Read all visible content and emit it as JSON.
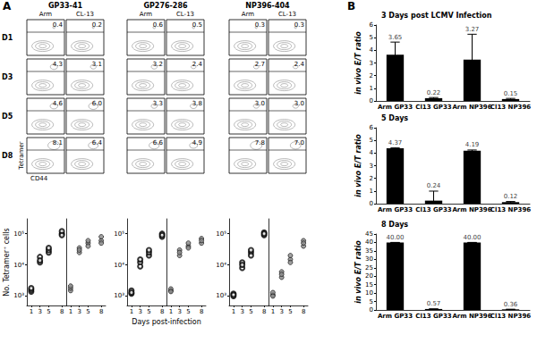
{
  "chart_data": [
    {
      "type": "contour",
      "annotations": [
        "A"
      ],
      "title": "GP33-41",
      "categories": [
        "D1",
        "D3",
        "D5",
        "D8"
      ],
      "xlabel": "CD44",
      "ylabel": "Tetramer",
      "data_labels": true,
      "series": [
        {
          "name": "Arm",
          "values": [
            0.4,
            4.3,
            4.6,
            8.1
          ],
          "value_labels": [
            "0.4",
            "4.3",
            "4.6",
            "8.1"
          ]
        },
        {
          "name": "CL-13",
          "values": [
            0.2,
            3.1,
            6.0,
            6.4
          ],
          "value_labels": [
            "0.2",
            "3.1",
            "6.0",
            "6.4"
          ]
        }
      ]
    },
    {
      "type": "contour",
      "title": "GP276-286",
      "categories": [
        "D1",
        "D3",
        "D5",
        "D8"
      ],
      "data_labels": true,
      "series": [
        {
          "name": "Arm",
          "values": [
            0.6,
            3.2,
            3.3,
            6.6
          ],
          "value_labels": [
            "0.6",
            "3.2",
            "3.3",
            "6.6"
          ]
        },
        {
          "name": "CL-13",
          "values": [
            0.5,
            2.4,
            3.8,
            4.9
          ],
          "value_labels": [
            "0.5",
            "2.4",
            "3.8",
            "4.9"
          ]
        }
      ]
    },
    {
      "type": "contour",
      "title": "NP396-404",
      "categories": [
        "D1",
        "D3",
        "D5",
        "D8"
      ],
      "data_labels": true,
      "series": [
        {
          "name": "Arm",
          "values": [
            0.3,
            2.7,
            3.0,
            7.8
          ],
          "value_labels": [
            "0.3",
            "2.7",
            "3.0",
            "7.8"
          ]
        },
        {
          "name": "CL-13",
          "values": [
            0.3,
            2.4,
            3.0,
            7.0
          ],
          "value_labels": [
            "0.3",
            "2.4",
            "3.0",
            "7.0"
          ]
        }
      ]
    },
    {
      "type": "scatter",
      "log": "y",
      "ylabel": "No. Tetramer⁺ cells",
      "xlim": [
        0,
        9
      ],
      "xticks": [
        1,
        3,
        5,
        8
      ],
      "ylim": [
        500,
        300000
      ],
      "yticks": [
        {
          "value": 1000,
          "label": "10³"
        },
        {
          "value": 10000,
          "label": "10⁴"
        },
        {
          "value": 100000,
          "label": "10⁵"
        }
      ],
      "series": [
        {
          "name": "Arm",
          "marker": "emptyCircle",
          "color": "#000000",
          "x": [
            1,
            1,
            1,
            3,
            3,
            3,
            5,
            5,
            5,
            8,
            8,
            8
          ],
          "values": [
            1400,
            1600,
            1800,
            12000,
            18000,
            14000,
            25000,
            30000,
            35000,
            100000,
            120000,
            90000
          ]
        },
        {
          "name": "CL-13",
          "marker": "circle",
          "color": "#8c8c8c",
          "x": [
            1,
            1,
            1,
            3,
            3,
            3,
            5,
            5,
            5,
            8,
            8,
            8
          ],
          "values": [
            1500,
            1800,
            2100,
            25000,
            35000,
            30000,
            50000,
            60000,
            40000,
            60000,
            80000,
            50000
          ]
        }
      ]
    },
    {
      "type": "scatter",
      "log": "y",
      "xlabel": "Days post-infection",
      "xlim": [
        0,
        9
      ],
      "xticks": [
        1,
        3,
        5,
        8
      ],
      "ylim": [
        500,
        300000
      ],
      "yticks": [
        {
          "value": 1000,
          "label": "10³"
        },
        {
          "value": 10000,
          "label": "10⁴"
        },
        {
          "value": 100000,
          "label": "10⁵"
        }
      ],
      "series": [
        {
          "name": "Arm",
          "marker": "emptyCircle",
          "color": "#000000",
          "x": [
            1,
            1,
            1,
            3,
            3,
            3,
            5,
            5,
            5,
            8,
            8,
            8
          ],
          "values": [
            1200,
            1500,
            1300,
            12000,
            15000,
            9000,
            20000,
            25000,
            30000,
            80000,
            100000,
            90000
          ]
        },
        {
          "name": "CL-13",
          "marker": "circle",
          "color": "#8c8c8c",
          "x": [
            1,
            1,
            1,
            3,
            3,
            3,
            5,
            5,
            5,
            8,
            8,
            8
          ],
          "values": [
            1500,
            1700,
            1400,
            20000,
            30000,
            25000,
            40000,
            50000,
            35000,
            50000,
            70000,
            60000
          ]
        }
      ]
    },
    {
      "type": "scatter",
      "log": "y",
      "xlim": [
        0,
        9
      ],
      "xticks": [
        1,
        3,
        5,
        8
      ],
      "ylim": [
        500,
        300000
      ],
      "yticks": [
        {
          "value": 1000,
          "label": "10³"
        },
        {
          "value": 10000,
          "label": "10⁴"
        },
        {
          "value": 100000,
          "label": "10⁵"
        }
      ],
      "series": [
        {
          "name": "Arm",
          "marker": "emptyCircle",
          "color": "#000000",
          "x": [
            1,
            1,
            1,
            3,
            3,
            3,
            5,
            5,
            5,
            8,
            8,
            8
          ],
          "values": [
            1000,
            1200,
            1100,
            8000,
            12000,
            10000,
            25000,
            30000,
            20000,
            90000,
            110000,
            100000
          ]
        },
        {
          "name": "CL-13",
          "marker": "circle",
          "color": "#8c8c8c",
          "x": [
            1,
            1,
            1,
            3,
            3,
            3,
            5,
            5,
            5,
            8,
            8,
            8
          ],
          "values": [
            1100,
            1300,
            1000,
            4000,
            6000,
            5000,
            15000,
            20000,
            12000,
            40000,
            60000,
            50000
          ]
        }
      ]
    },
    {
      "type": "bar",
      "annotations": [
        "B"
      ],
      "title": "3 Days post LCMV Infection",
      "ylabel": "in vivo E/T ratio",
      "categories": [
        "Arm GP33",
        "Cl13 GP33",
        "Arm NP396",
        "Cl13 NP396"
      ],
      "values": [
        3.65,
        0.22,
        3.27,
        0.15
      ],
      "value_labels": [
        "3.65",
        "0.22",
        "3.27",
        "0.15"
      ],
      "errors": [
        1.0,
        0.05,
        2.0,
        0.05
      ],
      "color": "#000000",
      "ylim": [
        0,
        6
      ],
      "yticks": [
        0,
        1,
        2,
        3,
        4,
        5,
        6
      ],
      "data_labels": true
    },
    {
      "type": "bar",
      "title": "5 Days",
      "ylabel": "in vivo E/T ratio",
      "categories": [
        "Arm GP33",
        "Cl13 GP33",
        "Arm NP396",
        "Cl13 NP396"
      ],
      "values": [
        4.37,
        0.24,
        4.19,
        0.12
      ],
      "value_labels": [
        "4.37",
        "0.24",
        "4.19",
        "0.12"
      ],
      "errors": [
        0.05,
        0.75,
        0.05,
        0.05
      ],
      "color": "#000000",
      "ylim": [
        0,
        6
      ],
      "yticks": [
        0,
        1,
        2,
        3,
        4,
        5,
        6
      ],
      "data_labels": true
    },
    {
      "type": "bar",
      "title": "8 Days",
      "ylabel": "in vivo E/T ratio",
      "categories": [
        "Arm GP33",
        "Cl13 GP33",
        "Arm NP396",
        "Cl13 NP396"
      ],
      "values": [
        40.0,
        0.57,
        40.0,
        0.36
      ],
      "value_labels": [
        "40.00",
        "0.57",
        "40.00",
        "0.36"
      ],
      "errors": [
        0,
        0,
        0,
        0
      ],
      "color": "#000000",
      "ylim": [
        0,
        45
      ],
      "yticks": [
        0,
        5,
        10,
        15,
        20,
        25,
        30,
        35,
        40,
        45
      ],
      "data_labels": true
    }
  ]
}
